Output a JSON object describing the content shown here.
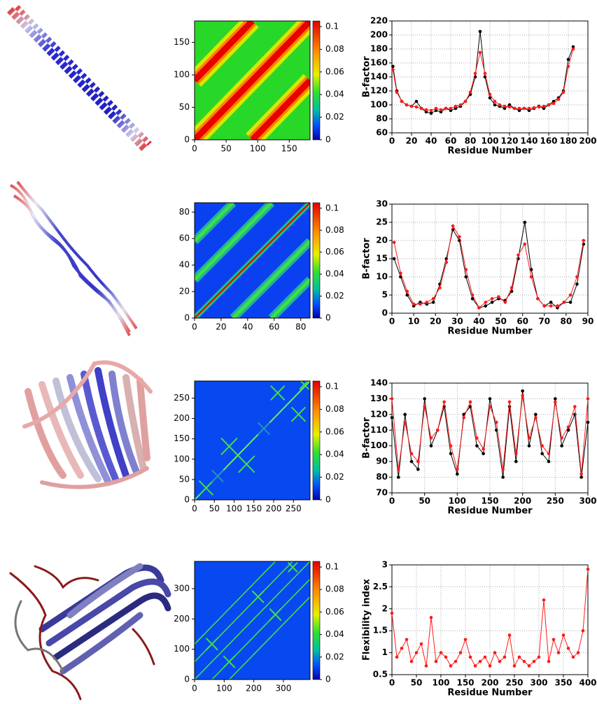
{
  "chart_data": [
    {
      "type": "heatmap",
      "xlim": [
        0,
        183
      ],
      "ylim": [
        0,
        183
      ],
      "xticks": [
        0,
        50,
        100,
        150
      ],
      "yticks": [
        0,
        50,
        100,
        150
      ],
      "clim": [
        0,
        0.105
      ],
      "cticks": [
        0,
        0.02,
        0.04,
        0.06,
        0.08,
        0.1
      ]
    },
    {
      "type": "line",
      "y_label": "B-factor",
      "x_label": "Residue Number",
      "xlim": [
        0,
        200
      ],
      "ylim": [
        60,
        220
      ],
      "xticks": [
        0,
        20,
        40,
        60,
        80,
        100,
        120,
        140,
        160,
        180,
        200
      ],
      "yticks": [
        60,
        80,
        100,
        120,
        140,
        160,
        180,
        200,
        220
      ],
      "grid": true,
      "x": [
        1,
        5,
        10,
        15,
        20,
        25,
        30,
        35,
        40,
        45,
        50,
        55,
        60,
        65,
        70,
        75,
        80,
        85,
        90,
        95,
        100,
        105,
        110,
        115,
        120,
        125,
        130,
        135,
        140,
        145,
        150,
        155,
        160,
        165,
        170,
        175,
        180,
        185
      ],
      "series": [
        {
          "color": "#000000",
          "values": [
            155,
            120,
            105,
            100,
            98,
            105,
            95,
            90,
            88,
            92,
            90,
            95,
            92,
            95,
            98,
            105,
            115,
            140,
            205,
            140,
            110,
            100,
            98,
            95,
            100,
            95,
            92,
            95,
            92,
            95,
            98,
            95,
            100,
            105,
            110,
            120,
            165,
            183
          ]
        },
        {
          "color": "#ff1a1a",
          "values": [
            150,
            118,
            105,
            100,
            98,
            97,
            95,
            93,
            92,
            95,
            93,
            95,
            95,
            98,
            100,
            105,
            118,
            145,
            175,
            145,
            115,
            105,
            100,
            98,
            97,
            95,
            95,
            95,
            95,
            96,
            97,
            98,
            100,
            102,
            108,
            118,
            155,
            180
          ]
        }
      ]
    },
    {
      "type": "heatmap",
      "xlim": [
        0,
        87
      ],
      "ylim": [
        0,
        87
      ],
      "xticks": [
        0,
        20,
        40,
        60,
        80
      ],
      "yticks": [
        0,
        20,
        40,
        60,
        80
      ],
      "clim": [
        0,
        0.105
      ],
      "cticks": [
        0,
        0.02,
        0.04,
        0.06,
        0.08,
        0.1
      ]
    },
    {
      "type": "line",
      "y_label": "B-factor",
      "x_label": "Residue Number",
      "xlim": [
        0,
        90
      ],
      "ylim": [
        0,
        30
      ],
      "xticks": [
        0,
        10,
        20,
        30,
        40,
        50,
        60,
        70,
        80,
        90
      ],
      "yticks": [
        0,
        5,
        10,
        15,
        20,
        25,
        30
      ],
      "grid": true,
      "x": [
        1,
        4,
        7,
        10,
        13,
        16,
        19,
        22,
        25,
        28,
        31,
        34,
        37,
        40,
        43,
        46,
        49,
        52,
        55,
        58,
        61,
        64,
        67,
        70,
        73,
        76,
        79,
        82,
        85,
        88
      ],
      "series": [
        {
          "color": "#000000",
          "values": [
            15,
            10,
            5,
            2,
            3,
            2.5,
            3,
            8,
            15,
            23,
            20,
            10,
            4,
            1.5,
            2,
            3,
            4,
            3.5,
            6,
            15,
            25,
            12,
            4,
            2,
            3,
            1.5,
            3,
            3,
            8,
            19
          ]
        },
        {
          "color": "#ff1a1a",
          "values": [
            19.5,
            11,
            6,
            2.5,
            2.5,
            3,
            4,
            7,
            14,
            24,
            21,
            12,
            5,
            1.5,
            3,
            4,
            4.5,
            3,
            7,
            16,
            19,
            10,
            4,
            2,
            2,
            2,
            3,
            5,
            10,
            20
          ]
        }
      ]
    },
    {
      "type": "heatmap",
      "xlim": [
        0,
        292
      ],
      "ylim": [
        0,
        292
      ],
      "xticks": [
        0,
        50,
        100,
        150,
        200,
        250
      ],
      "yticks": [
        0,
        50,
        100,
        150,
        200,
        250
      ],
      "clim": [
        0,
        0.105
      ],
      "cticks": [
        0,
        0.02,
        0.04,
        0.06,
        0.08,
        0.1
      ]
    },
    {
      "type": "line",
      "y_label": "B-factor",
      "x_label": "Residue Number",
      "xlim": [
        0,
        300
      ],
      "ylim": [
        70,
        140
      ],
      "xticks": [
        0,
        50,
        100,
        150,
        200,
        250,
        300
      ],
      "yticks": [
        70,
        80,
        90,
        100,
        110,
        120,
        130,
        140
      ],
      "grid": true,
      "x": [
        0,
        10,
        20,
        30,
        40,
        50,
        60,
        70,
        80,
        90,
        100,
        110,
        120,
        130,
        140,
        150,
        160,
        170,
        180,
        190,
        200,
        210,
        220,
        230,
        240,
        250,
        260,
        270,
        280,
        290,
        300
      ],
      "series": [
        {
          "color": "#000000",
          "values": [
            118,
            80,
            120,
            90,
            85,
            130,
            100,
            110,
            125,
            95,
            82,
            120,
            125,
            100,
            95,
            130,
            110,
            80,
            125,
            90,
            135,
            100,
            120,
            95,
            90,
            130,
            100,
            110,
            120,
            80,
            115
          ]
        },
        {
          "color": "#ff1a1a",
          "values": [
            130,
            85,
            115,
            95,
            90,
            125,
            105,
            110,
            128,
            100,
            85,
            118,
            128,
            105,
            98,
            125,
            115,
            85,
            128,
            95,
            132,
            105,
            118,
            100,
            95,
            128,
            105,
            112,
            125,
            82,
            130
          ]
        }
      ]
    },
    {
      "type": "heatmap",
      "xlim": [
        0,
        390
      ],
      "ylim": [
        0,
        390
      ],
      "xticks": [
        0,
        100,
        200,
        300
      ],
      "yticks": [
        0,
        100,
        200,
        300
      ],
      "clim": [
        0,
        0.105
      ],
      "cticks": [
        0,
        0.02,
        0.04,
        0.06,
        0.08,
        0.1
      ]
    },
    {
      "type": "line",
      "y_label": "Flexibility index",
      "x_label": "Residue Number",
      "xlim": [
        0,
        400
      ],
      "ylim": [
        0.5,
        3
      ],
      "xticks": [
        0,
        50,
        100,
        150,
        200,
        250,
        300,
        350,
        400
      ],
      "yticks": [
        0.5,
        1,
        1.5,
        2,
        2.5,
        3
      ],
      "grid": true,
      "x": [
        0,
        10,
        20,
        30,
        40,
        50,
        60,
        70,
        80,
        90,
        100,
        110,
        120,
        130,
        140,
        150,
        160,
        170,
        180,
        190,
        200,
        210,
        220,
        230,
        240,
        250,
        260,
        270,
        280,
        290,
        300,
        310,
        320,
        330,
        340,
        350,
        360,
        370,
        380,
        390,
        400
      ],
      "series": [
        {
          "color": "#ff1a1a",
          "values": [
            1.9,
            0.9,
            1.1,
            1.3,
            0.8,
            1.0,
            1.2,
            0.7,
            1.8,
            0.8,
            1.0,
            0.9,
            0.7,
            0.8,
            1.0,
            1.3,
            0.9,
            0.7,
            0.8,
            0.9,
            0.7,
            1.0,
            0.8,
            0.9,
            1.4,
            0.7,
            0.9,
            0.8,
            0.7,
            0.8,
            0.9,
            2.2,
            0.8,
            1.3,
            1.0,
            1.4,
            1.1,
            0.9,
            1.0,
            1.5,
            2.9
          ]
        }
      ]
    }
  ]
}
